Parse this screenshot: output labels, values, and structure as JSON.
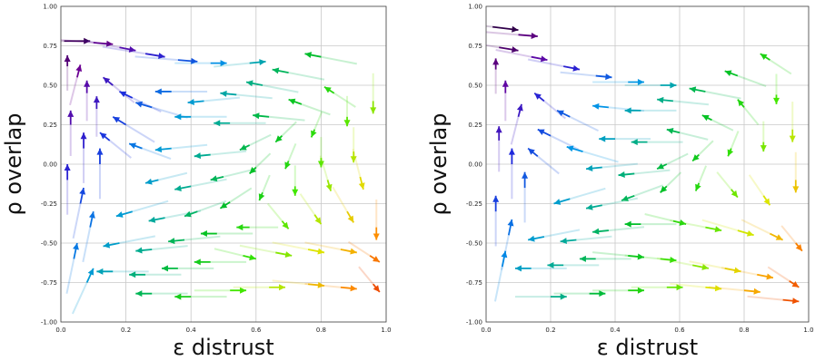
{
  "chart_data": [
    {
      "type": "quiver",
      "xlabel": "ε distrust",
      "ylabel": "ρ overlap",
      "xlim": [
        0.0,
        1.0
      ],
      "ylim": [
        -1.0,
        1.0
      ],
      "xticks": [
        "0.0",
        "0.2",
        "0.4",
        "0.6",
        "0.8",
        "1.0"
      ],
      "yticks": [
        "1.00",
        "0.75",
        "0.50",
        "0.25",
        "0.00",
        "-0.25",
        "-0.50",
        "-0.75",
        "-1.00"
      ],
      "grid": true,
      "legend": "none",
      "colormap": "nipy_spectral (hue varies with ε and ρ)",
      "arrows": [
        {
          "x": 0.01,
          "y": 0.78,
          "u": 0.08,
          "v": 0.0
        },
        {
          "x": 0.1,
          "y": 0.77,
          "u": 0.06,
          "v": -0.01
        },
        {
          "x": 0.18,
          "y": 0.74,
          "u": 0.05,
          "v": -0.02
        },
        {
          "x": 0.26,
          "y": 0.7,
          "u": 0.06,
          "v": -0.02
        },
        {
          "x": 0.36,
          "y": 0.66,
          "u": 0.06,
          "v": -0.01
        },
        {
          "x": 0.46,
          "y": 0.64,
          "u": 0.05,
          "v": 0.0
        },
        {
          "x": 0.58,
          "y": 0.64,
          "u": 0.05,
          "v": 0.01
        },
        {
          "x": 0.02,
          "y": 0.62,
          "u": 0.0,
          "v": 0.07
        },
        {
          "x": 0.05,
          "y": 0.55,
          "u": 0.01,
          "v": 0.08
        },
        {
          "x": 0.08,
          "y": 0.45,
          "u": 0.0,
          "v": 0.08
        },
        {
          "x": 0.11,
          "y": 0.35,
          "u": 0.0,
          "v": 0.08
        },
        {
          "x": 0.03,
          "y": 0.25,
          "u": 0.0,
          "v": 0.09
        },
        {
          "x": 0.07,
          "y": 0.1,
          "u": 0.0,
          "v": 0.1
        },
        {
          "x": 0.12,
          "y": 0.0,
          "u": 0.0,
          "v": 0.1
        },
        {
          "x": 0.02,
          "y": -0.1,
          "u": 0.0,
          "v": 0.1
        },
        {
          "x": 0.06,
          "y": -0.25,
          "u": 0.01,
          "v": 0.1
        },
        {
          "x": 0.09,
          "y": -0.4,
          "u": 0.01,
          "v": 0.1
        },
        {
          "x": 0.04,
          "y": -0.6,
          "u": 0.01,
          "v": 0.1
        },
        {
          "x": 0.08,
          "y": -0.75,
          "u": 0.02,
          "v": 0.09
        },
        {
          "x": 0.16,
          "y": 0.5,
          "u": -0.03,
          "v": 0.05
        },
        {
          "x": 0.22,
          "y": 0.42,
          "u": -0.04,
          "v": 0.04
        },
        {
          "x": 0.28,
          "y": 0.36,
          "u": -0.05,
          "v": 0.03
        },
        {
          "x": 0.2,
          "y": 0.25,
          "u": -0.04,
          "v": 0.05
        },
        {
          "x": 0.15,
          "y": 0.15,
          "u": -0.03,
          "v": 0.05
        },
        {
          "x": 0.25,
          "y": 0.1,
          "u": -0.04,
          "v": 0.03
        },
        {
          "x": 0.34,
          "y": 0.46,
          "u": -0.05,
          "v": 0.0
        },
        {
          "x": 0.44,
          "y": 0.4,
          "u": -0.05,
          "v": -0.01
        },
        {
          "x": 0.54,
          "y": 0.44,
          "u": -0.05,
          "v": 0.01
        },
        {
          "x": 0.62,
          "y": 0.5,
          "u": -0.05,
          "v": 0.02
        },
        {
          "x": 0.7,
          "y": 0.58,
          "u": -0.05,
          "v": 0.02
        },
        {
          "x": 0.8,
          "y": 0.68,
          "u": -0.05,
          "v": 0.02
        },
        {
          "x": 0.4,
          "y": 0.3,
          "u": -0.05,
          "v": 0.0
        },
        {
          "x": 0.52,
          "y": 0.26,
          "u": -0.05,
          "v": 0.0
        },
        {
          "x": 0.64,
          "y": 0.3,
          "u": -0.05,
          "v": 0.01
        },
        {
          "x": 0.74,
          "y": 0.38,
          "u": -0.04,
          "v": 0.03
        },
        {
          "x": 0.84,
          "y": 0.45,
          "u": -0.03,
          "v": 0.04
        },
        {
          "x": 0.34,
          "y": 0.1,
          "u": -0.05,
          "v": -0.01
        },
        {
          "x": 0.46,
          "y": 0.06,
          "u": -0.05,
          "v": -0.01
        },
        {
          "x": 0.58,
          "y": 0.12,
          "u": -0.03,
          "v": -0.03
        },
        {
          "x": 0.68,
          "y": 0.18,
          "u": -0.02,
          "v": -0.04
        },
        {
          "x": 0.78,
          "y": 0.22,
          "u": -0.01,
          "v": -0.05
        },
        {
          "x": 0.88,
          "y": 0.3,
          "u": 0.0,
          "v": -0.06
        },
        {
          "x": 0.96,
          "y": 0.4,
          "u": 0.0,
          "v": -0.08
        },
        {
          "x": 0.3,
          "y": -0.1,
          "u": -0.04,
          "v": -0.02
        },
        {
          "x": 0.4,
          "y": -0.14,
          "u": -0.05,
          "v": -0.02
        },
        {
          "x": 0.5,
          "y": -0.08,
          "u": -0.04,
          "v": -0.02
        },
        {
          "x": 0.6,
          "y": -0.02,
          "u": -0.02,
          "v": -0.04
        },
        {
          "x": 0.7,
          "y": 0.02,
          "u": -0.01,
          "v": -0.05
        },
        {
          "x": 0.8,
          "y": 0.04,
          "u": 0.0,
          "v": -0.06
        },
        {
          "x": 0.9,
          "y": 0.08,
          "u": 0.0,
          "v": -0.07
        },
        {
          "x": 0.22,
          "y": -0.3,
          "u": -0.05,
          "v": -0.03
        },
        {
          "x": 0.32,
          "y": -0.34,
          "u": -0.05,
          "v": -0.02
        },
        {
          "x": 0.42,
          "y": -0.3,
          "u": -0.04,
          "v": -0.03
        },
        {
          "x": 0.52,
          "y": -0.24,
          "u": -0.03,
          "v": -0.04
        },
        {
          "x": 0.62,
          "y": -0.18,
          "u": -0.01,
          "v": -0.05
        },
        {
          "x": 0.72,
          "y": -0.14,
          "u": 0.0,
          "v": -0.06
        },
        {
          "x": 0.82,
          "y": -0.1,
          "u": 0.01,
          "v": -0.07
        },
        {
          "x": 0.92,
          "y": -0.08,
          "u": 0.01,
          "v": -0.08
        },
        {
          "x": 0.18,
          "y": -0.5,
          "u": -0.05,
          "v": -0.02
        },
        {
          "x": 0.28,
          "y": -0.54,
          "u": -0.05,
          "v": -0.01
        },
        {
          "x": 0.38,
          "y": -0.48,
          "u": -0.05,
          "v": -0.01
        },
        {
          "x": 0.48,
          "y": -0.44,
          "u": -0.05,
          "v": 0.0
        },
        {
          "x": 0.58,
          "y": -0.4,
          "u": -0.04,
          "v": 0.0
        },
        {
          "x": 0.68,
          "y": -0.36,
          "u": 0.02,
          "v": -0.05
        },
        {
          "x": 0.78,
          "y": -0.32,
          "u": 0.02,
          "v": -0.06
        },
        {
          "x": 0.88,
          "y": -0.3,
          "u": 0.02,
          "v": -0.07
        },
        {
          "x": 0.97,
          "y": -0.4,
          "u": 0.0,
          "v": -0.08
        },
        {
          "x": 0.16,
          "y": -0.68,
          "u": -0.05,
          "v": 0.0
        },
        {
          "x": 0.26,
          "y": -0.7,
          "u": -0.05,
          "v": 0.0
        },
        {
          "x": 0.36,
          "y": -0.66,
          "u": -0.05,
          "v": 0.0
        },
        {
          "x": 0.46,
          "y": -0.62,
          "u": -0.05,
          "v": 0.0
        },
        {
          "x": 0.56,
          "y": -0.58,
          "u": 0.04,
          "v": -0.02
        },
        {
          "x": 0.66,
          "y": -0.56,
          "u": 0.05,
          "v": -0.02
        },
        {
          "x": 0.76,
          "y": -0.54,
          "u": 0.05,
          "v": -0.02
        },
        {
          "x": 0.86,
          "y": -0.54,
          "u": 0.05,
          "v": -0.02
        },
        {
          "x": 0.95,
          "y": -0.58,
          "u": 0.03,
          "v": -0.04
        },
        {
          "x": 0.28,
          "y": -0.82,
          "u": -0.05,
          "v": 0.0
        },
        {
          "x": 0.4,
          "y": -0.84,
          "u": -0.05,
          "v": 0.0
        },
        {
          "x": 0.52,
          "y": -0.8,
          "u": 0.05,
          "v": 0.0
        },
        {
          "x": 0.64,
          "y": -0.78,
          "u": 0.05,
          "v": 0.0
        },
        {
          "x": 0.76,
          "y": -0.76,
          "u": 0.05,
          "v": -0.01
        },
        {
          "x": 0.86,
          "y": -0.78,
          "u": 0.05,
          "v": -0.01
        },
        {
          "x": 0.96,
          "y": -0.76,
          "u": 0.02,
          "v": -0.05
        }
      ]
    },
    {
      "type": "quiver",
      "xlabel": "ε distrust",
      "ylabel": "ρ overlap",
      "xlim": [
        0.0,
        1.0
      ],
      "ylim": [
        -1.0,
        1.0
      ],
      "xticks": [
        "0.0",
        "0.2",
        "0.4",
        "0.6",
        "0.8",
        "1.0"
      ],
      "yticks": [
        "1.00",
        "0.75",
        "0.50",
        "0.25",
        "0.00",
        "-0.25",
        "-0.50",
        "-0.75",
        "-1.00"
      ],
      "grid": true,
      "legend": "none",
      "colormap": "nipy_spectral (hue varies with ε and ρ)",
      "arrows": [
        {
          "x": 0.02,
          "y": 0.87,
          "u": 0.08,
          "v": -0.02
        },
        {
          "x": 0.1,
          "y": 0.82,
          "u": 0.06,
          "v": -0.01
        },
        {
          "x": 0.04,
          "y": 0.74,
          "u": 0.06,
          "v": -0.02
        },
        {
          "x": 0.14,
          "y": 0.68,
          "u": 0.05,
          "v": -0.02
        },
        {
          "x": 0.24,
          "y": 0.62,
          "u": 0.05,
          "v": -0.02
        },
        {
          "x": 0.34,
          "y": 0.56,
          "u": 0.05,
          "v": -0.01
        },
        {
          "x": 0.44,
          "y": 0.52,
          "u": 0.05,
          "v": 0.0
        },
        {
          "x": 0.54,
          "y": 0.5,
          "u": 0.05,
          "v": 0.0
        },
        {
          "x": 0.03,
          "y": 0.6,
          "u": 0.0,
          "v": 0.07
        },
        {
          "x": 0.06,
          "y": 0.45,
          "u": 0.0,
          "v": 0.08
        },
        {
          "x": 0.1,
          "y": 0.3,
          "u": 0.01,
          "v": 0.08
        },
        {
          "x": 0.04,
          "y": 0.15,
          "u": 0.0,
          "v": 0.09
        },
        {
          "x": 0.08,
          "y": 0.0,
          "u": 0.0,
          "v": 0.1
        },
        {
          "x": 0.12,
          "y": -0.15,
          "u": 0.0,
          "v": 0.1
        },
        {
          "x": 0.03,
          "y": -0.3,
          "u": 0.0,
          "v": 0.1
        },
        {
          "x": 0.07,
          "y": -0.45,
          "u": 0.01,
          "v": 0.1
        },
        {
          "x": 0.05,
          "y": -0.65,
          "u": 0.01,
          "v": 0.1
        },
        {
          "x": 0.18,
          "y": 0.4,
          "u": -0.03,
          "v": 0.05
        },
        {
          "x": 0.26,
          "y": 0.3,
          "u": -0.04,
          "v": 0.04
        },
        {
          "x": 0.2,
          "y": 0.18,
          "u": -0.04,
          "v": 0.04
        },
        {
          "x": 0.3,
          "y": 0.08,
          "u": -0.05,
          "v": 0.03
        },
        {
          "x": 0.16,
          "y": 0.05,
          "u": -0.03,
          "v": 0.05
        },
        {
          "x": 0.38,
          "y": 0.36,
          "u": -0.05,
          "v": 0.01
        },
        {
          "x": 0.48,
          "y": 0.34,
          "u": -0.05,
          "v": 0.0
        },
        {
          "x": 0.58,
          "y": 0.4,
          "u": -0.05,
          "v": 0.01
        },
        {
          "x": 0.68,
          "y": 0.46,
          "u": -0.05,
          "v": 0.02
        },
        {
          "x": 0.78,
          "y": 0.56,
          "u": -0.04,
          "v": 0.03
        },
        {
          "x": 0.88,
          "y": 0.66,
          "u": -0.03,
          "v": 0.04
        },
        {
          "x": 0.4,
          "y": 0.16,
          "u": -0.05,
          "v": 0.0
        },
        {
          "x": 0.5,
          "y": 0.14,
          "u": -0.05,
          "v": 0.0
        },
        {
          "x": 0.6,
          "y": 0.2,
          "u": -0.04,
          "v": 0.02
        },
        {
          "x": 0.7,
          "y": 0.28,
          "u": -0.03,
          "v": 0.03
        },
        {
          "x": 0.8,
          "y": 0.36,
          "u": -0.02,
          "v": 0.05
        },
        {
          "x": 0.9,
          "y": 0.44,
          "u": 0.0,
          "v": -0.06
        },
        {
          "x": 0.36,
          "y": -0.02,
          "u": -0.05,
          "v": -0.01
        },
        {
          "x": 0.46,
          "y": -0.06,
          "u": -0.05,
          "v": -0.01
        },
        {
          "x": 0.56,
          "y": 0.0,
          "u": -0.03,
          "v": -0.03
        },
        {
          "x": 0.66,
          "y": 0.06,
          "u": -0.02,
          "v": -0.04
        },
        {
          "x": 0.76,
          "y": 0.1,
          "u": -0.01,
          "v": -0.05
        },
        {
          "x": 0.86,
          "y": 0.14,
          "u": 0.0,
          "v": -0.06
        },
        {
          "x": 0.95,
          "y": 0.22,
          "u": 0.0,
          "v": -0.08
        },
        {
          "x": 0.26,
          "y": -0.22,
          "u": -0.05,
          "v": -0.03
        },
        {
          "x": 0.36,
          "y": -0.26,
          "u": -0.05,
          "v": -0.02
        },
        {
          "x": 0.46,
          "y": -0.2,
          "u": -0.04,
          "v": -0.03
        },
        {
          "x": 0.56,
          "y": -0.14,
          "u": -0.02,
          "v": -0.04
        },
        {
          "x": 0.66,
          "y": -0.12,
          "u": -0.01,
          "v": -0.05
        },
        {
          "x": 0.76,
          "y": -0.16,
          "u": 0.02,
          "v": -0.05
        },
        {
          "x": 0.86,
          "y": -0.2,
          "u": 0.02,
          "v": -0.06
        },
        {
          "x": 0.96,
          "y": -0.1,
          "u": 0.0,
          "v": -0.08
        },
        {
          "x": 0.18,
          "y": -0.46,
          "u": -0.05,
          "v": -0.02
        },
        {
          "x": 0.28,
          "y": -0.48,
          "u": -0.05,
          "v": -0.01
        },
        {
          "x": 0.38,
          "y": -0.42,
          "u": -0.05,
          "v": -0.01
        },
        {
          "x": 0.48,
          "y": -0.38,
          "u": -0.05,
          "v": 0.0
        },
        {
          "x": 0.58,
          "y": -0.36,
          "u": 0.04,
          "v": -0.02
        },
        {
          "x": 0.68,
          "y": -0.4,
          "u": 0.05,
          "v": -0.02
        },
        {
          "x": 0.78,
          "y": -0.42,
          "u": 0.05,
          "v": -0.03
        },
        {
          "x": 0.88,
          "y": -0.44,
          "u": 0.04,
          "v": -0.04
        },
        {
          "x": 0.96,
          "y": -0.5,
          "u": 0.02,
          "v": -0.05
        },
        {
          "x": 0.14,
          "y": -0.66,
          "u": -0.05,
          "v": 0.0
        },
        {
          "x": 0.24,
          "y": -0.64,
          "u": -0.05,
          "v": 0.0
        },
        {
          "x": 0.34,
          "y": -0.6,
          "u": -0.05,
          "v": 0.0
        },
        {
          "x": 0.44,
          "y": -0.58,
          "u": 0.05,
          "v": -0.01
        },
        {
          "x": 0.54,
          "y": -0.6,
          "u": 0.05,
          "v": -0.01
        },
        {
          "x": 0.64,
          "y": -0.64,
          "u": 0.05,
          "v": -0.02
        },
        {
          "x": 0.74,
          "y": -0.66,
          "u": 0.05,
          "v": -0.02
        },
        {
          "x": 0.84,
          "y": -0.7,
          "u": 0.05,
          "v": -0.02
        },
        {
          "x": 0.94,
          "y": -0.74,
          "u": 0.03,
          "v": -0.04
        },
        {
          "x": 0.2,
          "y": -0.84,
          "u": 0.05,
          "v": 0.0
        },
        {
          "x": 0.32,
          "y": -0.82,
          "u": 0.05,
          "v": 0.0
        },
        {
          "x": 0.44,
          "y": -0.8,
          "u": 0.05,
          "v": 0.0
        },
        {
          "x": 0.56,
          "y": -0.78,
          "u": 0.05,
          "v": 0.0
        },
        {
          "x": 0.68,
          "y": -0.78,
          "u": 0.05,
          "v": -0.01
        },
        {
          "x": 0.8,
          "y": -0.8,
          "u": 0.05,
          "v": -0.01
        },
        {
          "x": 0.92,
          "y": -0.86,
          "u": 0.05,
          "v": -0.01
        }
      ]
    }
  ]
}
